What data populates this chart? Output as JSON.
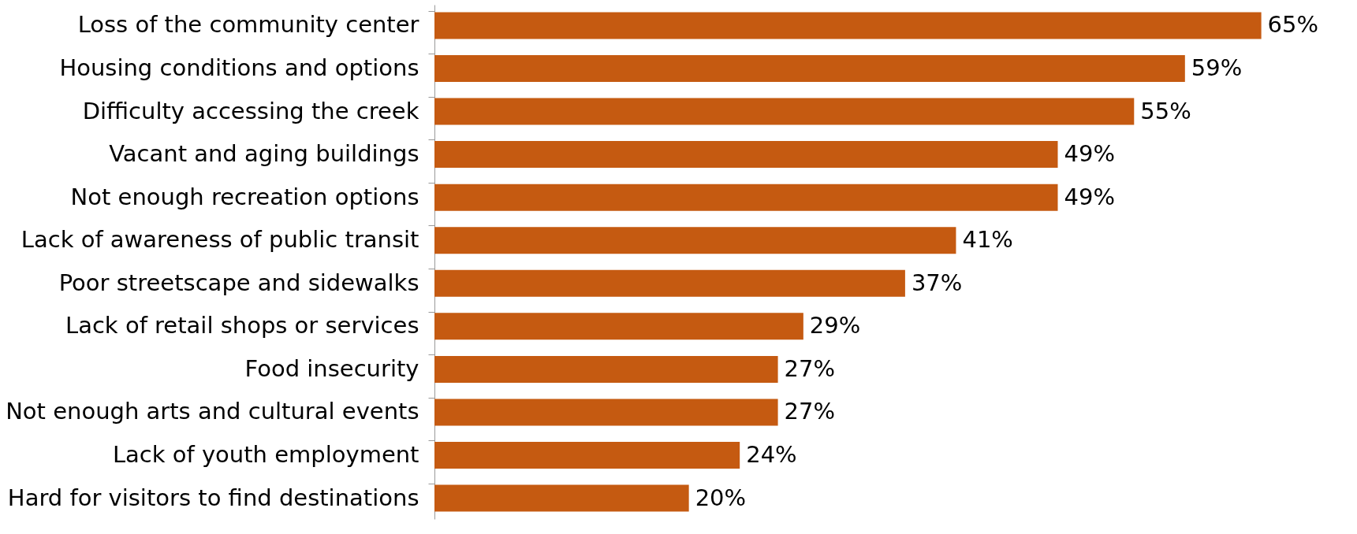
{
  "chart_data": {
    "type": "bar",
    "orientation": "horizontal",
    "categories": [
      "Loss of the community center",
      "Housing conditions and options",
      "Difficulty accessing the creek",
      "Vacant and aging buildings",
      "Not enough recreation options",
      "Lack of awareness of public transit",
      "Poor streetscape and sidewalks",
      "Lack of retail shops or services",
      "Food insecurity",
      "Not enough arts and cultural events",
      "Lack of youth employment",
      "Hard for visitors to find destinations"
    ],
    "values": [
      65,
      59,
      55,
      49,
      49,
      41,
      37,
      29,
      27,
      27,
      24,
      20
    ],
    "value_labels": [
      "65%",
      "59%",
      "55%",
      "49%",
      "49%",
      "41%",
      "37%",
      "29%",
      "27%",
      "27%",
      "24%",
      "20%"
    ],
    "color": "#c55a11"
  }
}
